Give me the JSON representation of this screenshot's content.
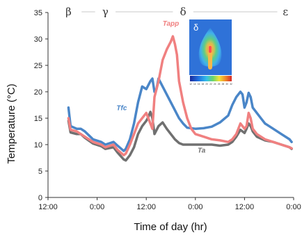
{
  "chart_data": {
    "type": "line",
    "xlabel": "Time of day (hr)",
    "ylabel": "Temperature (°C)",
    "ylim": [
      0,
      35
    ],
    "yticks": [
      "0",
      "5",
      "10",
      "15",
      "20",
      "25",
      "30",
      "35"
    ],
    "x_range_hours": [
      0,
      60
    ],
    "xticks": [
      {
        "value": 0,
        "label": "12:00"
      },
      {
        "value": 12,
        "label": "0:00"
      },
      {
        "value": 24,
        "label": "12:00"
      },
      {
        "value": 36,
        "label": "0:00"
      },
      {
        "value": 48,
        "label": "12:00"
      },
      {
        "value": 60,
        "label": "0:00"
      }
    ],
    "phases": [
      {
        "label": "β",
        "x": 5
      },
      {
        "label": "γ",
        "x": 14
      },
      {
        "label": "δ",
        "x": 33
      },
      {
        "label": "ε",
        "x": 58
      }
    ],
    "series": [
      {
        "name": "Tfc",
        "color": "#4a86c8",
        "label_at": {
          "x": 18,
          "y": 16.5
        },
        "points": [
          [
            5,
            17
          ],
          [
            5.5,
            13.5
          ],
          [
            7,
            13
          ],
          [
            8,
            13
          ],
          [
            9,
            12.5
          ],
          [
            11,
            11
          ],
          [
            13,
            10.5
          ],
          [
            14,
            10
          ],
          [
            16,
            10.5
          ],
          [
            17,
            9.8
          ],
          [
            18.5,
            8.8
          ],
          [
            19,
            9.2
          ],
          [
            20,
            11
          ],
          [
            21,
            14
          ],
          [
            22,
            18
          ],
          [
            23,
            21
          ],
          [
            24,
            20.5
          ],
          [
            25,
            22
          ],
          [
            25.5,
            22.5
          ],
          [
            26,
            20
          ],
          [
            26.5,
            20.5
          ],
          [
            27,
            22.5
          ],
          [
            28,
            21
          ],
          [
            29,
            19.5
          ],
          [
            30,
            18
          ],
          [
            31,
            16.5
          ],
          [
            32,
            15
          ],
          [
            33,
            14
          ],
          [
            34,
            13.2
          ],
          [
            36,
            13
          ],
          [
            38,
            13.1
          ],
          [
            40,
            13.4
          ],
          [
            42,
            14.2
          ],
          [
            44,
            15.5
          ],
          [
            45,
            17.5
          ],
          [
            46,
            19
          ],
          [
            47,
            20
          ],
          [
            47.5,
            19.5
          ],
          [
            48,
            17
          ],
          [
            48.5,
            18
          ],
          [
            49,
            19.8
          ],
          [
            49.5,
            19
          ],
          [
            50,
            17
          ],
          [
            51,
            16
          ],
          [
            52,
            15
          ],
          [
            53,
            14
          ],
          [
            55,
            13
          ],
          [
            57,
            12
          ],
          [
            59,
            11
          ],
          [
            59.5,
            10.5
          ]
        ]
      },
      {
        "name": "Tapp",
        "color": "#f08080",
        "label_at": {
          "x": 30,
          "y": 32.5
        },
        "points": [
          [
            5,
            15
          ],
          [
            5.5,
            12.8
          ],
          [
            7,
            12.5
          ],
          [
            8,
            12
          ],
          [
            9,
            11.5
          ],
          [
            11,
            10.5
          ],
          [
            13,
            10
          ],
          [
            14,
            9.5
          ],
          [
            16,
            10
          ],
          [
            17,
            9
          ],
          [
            18.5,
            8
          ],
          [
            19,
            8.3
          ],
          [
            20,
            10
          ],
          [
            21,
            12
          ],
          [
            22,
            14
          ],
          [
            23,
            15
          ],
          [
            24,
            16
          ],
          [
            25,
            14
          ],
          [
            25.5,
            13
          ],
          [
            26,
            19
          ],
          [
            27,
            22
          ],
          [
            28,
            26
          ],
          [
            29,
            28
          ],
          [
            30,
            29.5
          ],
          [
            30.5,
            30.5
          ],
          [
            31,
            29
          ],
          [
            31.5,
            27
          ],
          [
            32,
            22
          ],
          [
            33,
            18
          ],
          [
            34,
            15
          ],
          [
            35,
            13
          ],
          [
            36,
            12
          ],
          [
            38,
            11.5
          ],
          [
            40,
            11
          ],
          [
            42,
            10.8
          ],
          [
            44,
            10.5
          ],
          [
            45,
            11
          ],
          [
            46,
            12
          ],
          [
            47,
            14
          ],
          [
            48,
            13
          ],
          [
            48.5,
            13.5
          ],
          [
            49,
            16
          ],
          [
            49.5,
            15
          ],
          [
            50,
            13
          ],
          [
            51,
            12
          ],
          [
            53,
            11
          ],
          [
            55,
            10.5
          ],
          [
            57,
            10
          ],
          [
            59,
            9.5
          ],
          [
            59.5,
            9.3
          ]
        ]
      },
      {
        "name": "Ta",
        "color": "#707070",
        "label_at": {
          "x": 37.5,
          "y": 8.5
        },
        "points": [
          [
            5,
            14.5
          ],
          [
            5.5,
            12.3
          ],
          [
            7,
            12
          ],
          [
            8,
            12
          ],
          [
            9,
            11.3
          ],
          [
            11,
            10.2
          ],
          [
            13,
            9.7
          ],
          [
            14,
            9.2
          ],
          [
            16,
            9.5
          ],
          [
            17,
            8.5
          ],
          [
            18.5,
            7.2
          ],
          [
            19,
            7
          ],
          [
            20,
            8
          ],
          [
            21,
            9.5
          ],
          [
            22,
            12
          ],
          [
            23,
            13.5
          ],
          [
            24,
            14.5
          ],
          [
            24.5,
            15.2
          ],
          [
            25,
            16.2
          ],
          [
            25.5,
            15
          ],
          [
            26,
            12
          ],
          [
            27,
            13.5
          ],
          [
            28,
            14.2
          ],
          [
            29,
            13
          ],
          [
            30,
            12
          ],
          [
            31,
            11
          ],
          [
            32,
            10.3
          ],
          [
            33,
            10
          ],
          [
            36,
            10
          ],
          [
            38,
            10
          ],
          [
            40,
            10
          ],
          [
            42,
            9.8
          ],
          [
            44,
            10
          ],
          [
            45,
            10.5
          ],
          [
            46,
            11.5
          ],
          [
            47,
            12.8
          ],
          [
            48,
            12.2
          ],
          [
            48.5,
            13
          ],
          [
            49,
            14
          ],
          [
            49.5,
            13.5
          ],
          [
            50,
            12.5
          ],
          [
            51,
            11.5
          ],
          [
            53,
            10.8
          ],
          [
            55,
            10.5
          ],
          [
            57,
            10
          ],
          [
            59,
            9.5
          ],
          [
            59.5,
            9.2
          ]
        ]
      }
    ],
    "inset": {
      "label": "δ",
      "colorbar_ticks": [
        "12",
        "14",
        "16",
        "18",
        "20",
        "22",
        "24",
        "26",
        "28",
        "30",
        "32"
      ]
    }
  }
}
